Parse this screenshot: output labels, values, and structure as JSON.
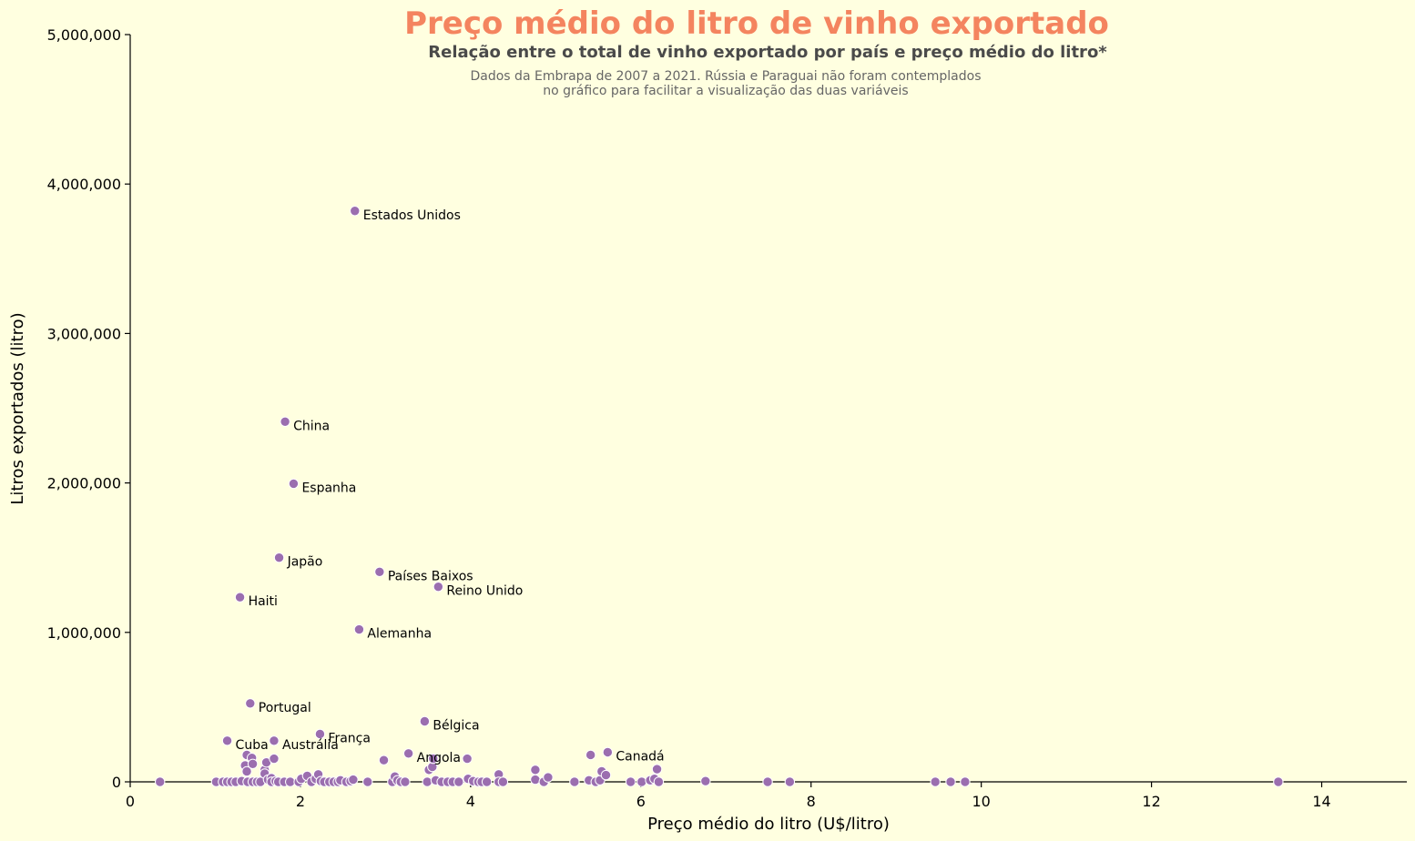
{
  "chart_data": {
    "type": "scatter",
    "title": "Preço médio do litro de vinho exportado",
    "subtitle": "Relação entre o total de vinho exportado por país e preço médio do litro*",
    "note_lines": [
      "Dados da Embrapa de 2007 a 2021. Rússia e Paraguai não foram contemplados",
      "no gráfico para facilitar a visualização das duas variáveis"
    ],
    "xlabel": "Preço médio do litro (U$/litro)",
    "ylabel": "Litros exportados (litro)",
    "xlim": [
      0,
      15
    ],
    "ylim": [
      0,
      5000000
    ],
    "xticks": [
      0,
      2,
      4,
      6,
      8,
      10,
      12,
      14
    ],
    "xtick_labels": [
      "0",
      "2",
      "4",
      "6",
      "8",
      "10",
      "12",
      "14"
    ],
    "yticks": [
      0,
      1000000,
      2000000,
      3000000,
      4000000,
      5000000
    ],
    "ytick_labels": [
      "0",
      "1,000,000",
      "2,000,000",
      "3,000,000",
      "4,000,000",
      "5,000,000"
    ],
    "grid": false,
    "colors": {
      "background": "#ffffe0",
      "marker": "#9b6eaf",
      "title": "#f4845f",
      "subtitle": "#4a4a4a",
      "note": "#666666"
    },
    "labeled_points": [
      {
        "label": "Estados Unidos",
        "x": 2.64,
        "y": 3820000
      },
      {
        "label": "China",
        "x": 1.82,
        "y": 2410000
      },
      {
        "label": "Espanha",
        "x": 1.92,
        "y": 1995000
      },
      {
        "label": "Japão",
        "x": 1.75,
        "y": 1500000
      },
      {
        "label": "Países Baixos",
        "x": 2.93,
        "y": 1405000
      },
      {
        "label": "Reino Unido",
        "x": 3.62,
        "y": 1305000
      },
      {
        "label": "Haiti",
        "x": 1.29,
        "y": 1235000
      },
      {
        "label": "Alemanha",
        "x": 2.69,
        "y": 1020000
      },
      {
        "label": "Portugal",
        "x": 1.41,
        "y": 525000
      },
      {
        "label": "Bélgica",
        "x": 3.46,
        "y": 405000
      },
      {
        "label": "França",
        "x": 2.23,
        "y": 320000
      },
      {
        "label": "Cuba",
        "x": 1.14,
        "y": 275000
      },
      {
        "label": "Austrália",
        "x": 1.69,
        "y": 275000
      },
      {
        "label": "Canadá",
        "x": 5.61,
        "y": 198000
      },
      {
        "label": "Angola",
        "x": 3.27,
        "y": 190000
      }
    ],
    "other_points": [
      {
        "x": 0.35,
        "y": 0
      },
      {
        "x": 1.01,
        "y": 0
      },
      {
        "x": 1.09,
        "y": 0
      },
      {
        "x": 1.14,
        "y": 0
      },
      {
        "x": 1.19,
        "y": 0
      },
      {
        "x": 1.24,
        "y": 0
      },
      {
        "x": 1.31,
        "y": 5000
      },
      {
        "x": 1.37,
        "y": 180000
      },
      {
        "x": 1.35,
        "y": 110000
      },
      {
        "x": 1.37,
        "y": 70000
      },
      {
        "x": 1.43,
        "y": 160000
      },
      {
        "x": 1.44,
        "y": 120000
      },
      {
        "x": 1.38,
        "y": 0
      },
      {
        "x": 1.44,
        "y": 0
      },
      {
        "x": 1.49,
        "y": 0
      },
      {
        "x": 1.53,
        "y": 0
      },
      {
        "x": 1.58,
        "y": 80000
      },
      {
        "x": 1.58,
        "y": 55000
      },
      {
        "x": 1.6,
        "y": 130000
      },
      {
        "x": 1.62,
        "y": 15000
      },
      {
        "x": 1.66,
        "y": 25000
      },
      {
        "x": 1.69,
        "y": 155000
      },
      {
        "x": 1.66,
        "y": 0
      },
      {
        "x": 1.71,
        "y": 5000
      },
      {
        "x": 1.74,
        "y": 0
      },
      {
        "x": 1.81,
        "y": 0
      },
      {
        "x": 1.88,
        "y": 0
      },
      {
        "x": 1.98,
        "y": 0
      },
      {
        "x": 2.01,
        "y": 20000
      },
      {
        "x": 2.08,
        "y": 40000
      },
      {
        "x": 2.13,
        "y": 0
      },
      {
        "x": 2.18,
        "y": 20000
      },
      {
        "x": 2.21,
        "y": 50000
      },
      {
        "x": 2.24,
        "y": 5000
      },
      {
        "x": 2.28,
        "y": 0
      },
      {
        "x": 2.34,
        "y": 0
      },
      {
        "x": 2.39,
        "y": 0
      },
      {
        "x": 2.44,
        "y": 0
      },
      {
        "x": 2.47,
        "y": 10000
      },
      {
        "x": 2.54,
        "y": 0
      },
      {
        "x": 2.59,
        "y": 5000
      },
      {
        "x": 2.62,
        "y": 15000
      },
      {
        "x": 2.79,
        "y": 0
      },
      {
        "x": 2.98,
        "y": 145000
      },
      {
        "x": 3.08,
        "y": 0
      },
      {
        "x": 3.11,
        "y": 35000
      },
      {
        "x": 3.14,
        "y": 10000
      },
      {
        "x": 3.18,
        "y": 0
      },
      {
        "x": 3.23,
        "y": 0
      },
      {
        "x": 3.49,
        "y": 0
      },
      {
        "x": 3.51,
        "y": 80000
      },
      {
        "x": 3.55,
        "y": 100000
      },
      {
        "x": 3.56,
        "y": 155000
      },
      {
        "x": 3.59,
        "y": 10000
      },
      {
        "x": 3.66,
        "y": 0
      },
      {
        "x": 3.73,
        "y": 0
      },
      {
        "x": 3.79,
        "y": 0
      },
      {
        "x": 3.86,
        "y": 0
      },
      {
        "x": 3.96,
        "y": 155000
      },
      {
        "x": 3.97,
        "y": 20000
      },
      {
        "x": 4.03,
        "y": 5000
      },
      {
        "x": 4.09,
        "y": 0
      },
      {
        "x": 4.13,
        "y": 0
      },
      {
        "x": 4.19,
        "y": 0
      },
      {
        "x": 4.33,
        "y": 50000
      },
      {
        "x": 4.33,
        "y": 0
      },
      {
        "x": 4.38,
        "y": 0
      },
      {
        "x": 4.76,
        "y": 80000
      },
      {
        "x": 4.76,
        "y": 15000
      },
      {
        "x": 4.86,
        "y": 0
      },
      {
        "x": 4.91,
        "y": 30000
      },
      {
        "x": 5.22,
        "y": 0
      },
      {
        "x": 5.39,
        "y": 10000
      },
      {
        "x": 5.41,
        "y": 180000
      },
      {
        "x": 5.47,
        "y": 0
      },
      {
        "x": 5.52,
        "y": 10000
      },
      {
        "x": 5.54,
        "y": 70000
      },
      {
        "x": 5.59,
        "y": 45000
      },
      {
        "x": 5.88,
        "y": 0
      },
      {
        "x": 6.01,
        "y": 0
      },
      {
        "x": 6.11,
        "y": 10000
      },
      {
        "x": 6.16,
        "y": 20000
      },
      {
        "x": 6.19,
        "y": 85000
      },
      {
        "x": 6.21,
        "y": 0
      },
      {
        "x": 6.76,
        "y": 5000
      },
      {
        "x": 7.49,
        "y": 0
      },
      {
        "x": 7.75,
        "y": 0
      },
      {
        "x": 9.46,
        "y": 0
      },
      {
        "x": 9.64,
        "y": 0
      },
      {
        "x": 9.81,
        "y": 0
      },
      {
        "x": 13.49,
        "y": 0
      }
    ]
  }
}
